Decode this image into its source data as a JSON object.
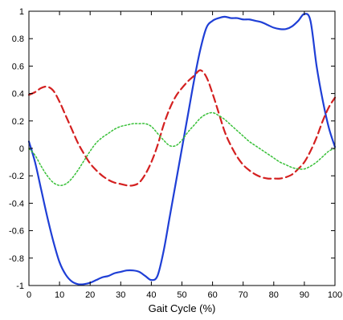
{
  "chart_data": {
    "type": "line",
    "xlabel": "Gait Cycle (%)",
    "ylabel": "",
    "title": "",
    "xlim": [
      0,
      100
    ],
    "ylim": [
      -1,
      1
    ],
    "xticks": [
      0,
      10,
      20,
      30,
      40,
      50,
      60,
      70,
      80,
      90,
      100
    ],
    "yticks": [
      1,
      0.8,
      0.6,
      0.4,
      0.2,
      0,
      -0.2,
      -0.4,
      -0.6,
      -0.8,
      -1
    ],
    "xtick_labels": [
      "0",
      "10",
      "20",
      "30",
      "40",
      "50",
      "60",
      "70",
      "80",
      "90",
      "100"
    ],
    "ytick_labels": [
      "1",
      "0.8",
      "0.6",
      "0.4",
      "0.2",
      "0",
      "-0.2",
      "-0.4",
      "-0.6",
      "-0.8",
      "-1"
    ],
    "grid": false,
    "series": [
      {
        "color": "#1f3fd6",
        "style": "solid",
        "x": [
          0,
          2,
          4,
          6,
          8,
          10,
          12,
          14,
          16,
          18,
          20,
          22,
          24,
          26,
          28,
          30,
          32,
          34,
          36,
          38,
          40,
          42,
          44,
          46,
          48,
          50,
          52,
          54,
          56,
          58,
          60,
          62,
          64,
          66,
          68,
          70,
          72,
          74,
          76,
          78,
          80,
          82,
          84,
          86,
          88,
          90,
          92,
          94,
          96,
          98,
          100
        ],
        "y": [
          0.05,
          -0.1,
          -0.3,
          -0.5,
          -0.68,
          -0.83,
          -0.92,
          -0.97,
          -0.99,
          -0.99,
          -0.98,
          -0.96,
          -0.94,
          -0.93,
          -0.91,
          -0.9,
          -0.89,
          -0.89,
          -0.9,
          -0.93,
          -0.96,
          -0.93,
          -0.75,
          -0.5,
          -0.25,
          0.0,
          0.25,
          0.5,
          0.72,
          0.88,
          0.93,
          0.95,
          0.96,
          0.95,
          0.95,
          0.94,
          0.94,
          0.93,
          0.92,
          0.9,
          0.88,
          0.87,
          0.87,
          0.89,
          0.93,
          0.98,
          0.93,
          0.6,
          0.35,
          0.15,
          0.01
        ]
      },
      {
        "color": "#d42020",
        "style": "dashed",
        "x": [
          0,
          2,
          4,
          6,
          8,
          10,
          12,
          14,
          16,
          18,
          20,
          22,
          24,
          26,
          28,
          30,
          32,
          34,
          36,
          38,
          40,
          42,
          44,
          46,
          48,
          50,
          52,
          54,
          56,
          58,
          60,
          62,
          64,
          66,
          68,
          70,
          72,
          74,
          76,
          78,
          80,
          82,
          84,
          86,
          88,
          90,
          92,
          94,
          96,
          98,
          100
        ],
        "y": [
          0.39,
          0.41,
          0.44,
          0.45,
          0.42,
          0.34,
          0.24,
          0.14,
          0.04,
          -0.04,
          -0.11,
          -0.16,
          -0.2,
          -0.23,
          -0.25,
          -0.26,
          -0.27,
          -0.27,
          -0.25,
          -0.19,
          -0.1,
          0.02,
          0.17,
          0.29,
          0.38,
          0.44,
          0.49,
          0.53,
          0.57,
          0.52,
          0.4,
          0.26,
          0.12,
          0.02,
          -0.06,
          -0.12,
          -0.16,
          -0.19,
          -0.21,
          -0.22,
          -0.22,
          -0.22,
          -0.21,
          -0.19,
          -0.15,
          -0.1,
          -0.02,
          0.08,
          0.2,
          0.3,
          0.37
        ]
      },
      {
        "color": "#38c038",
        "style": "dotted",
        "x": [
          0,
          2,
          4,
          6,
          8,
          10,
          12,
          14,
          16,
          18,
          20,
          22,
          24,
          26,
          28,
          30,
          32,
          34,
          36,
          38,
          40,
          42,
          44,
          46,
          48,
          50,
          52,
          54,
          56,
          58,
          60,
          62,
          64,
          66,
          68,
          70,
          72,
          74,
          76,
          78,
          80,
          82,
          84,
          86,
          88,
          90,
          92,
          94,
          96,
          98,
          100
        ],
        "y": [
          0.0,
          -0.05,
          -0.13,
          -0.2,
          -0.25,
          -0.27,
          -0.26,
          -0.22,
          -0.16,
          -0.09,
          -0.02,
          0.04,
          0.08,
          0.11,
          0.14,
          0.16,
          0.17,
          0.18,
          0.18,
          0.18,
          0.16,
          0.11,
          0.06,
          0.02,
          0.02,
          0.06,
          0.12,
          0.17,
          0.22,
          0.25,
          0.26,
          0.24,
          0.21,
          0.17,
          0.13,
          0.09,
          0.05,
          0.02,
          -0.01,
          -0.04,
          -0.07,
          -0.1,
          -0.12,
          -0.14,
          -0.15,
          -0.15,
          -0.13,
          -0.1,
          -0.06,
          -0.02,
          0.0
        ]
      }
    ]
  }
}
